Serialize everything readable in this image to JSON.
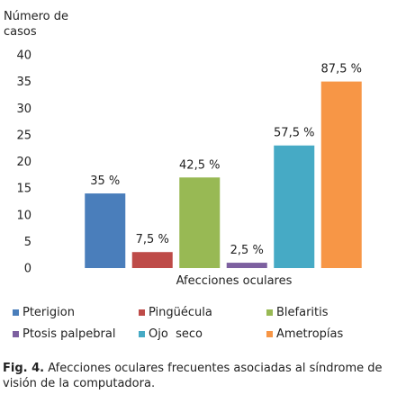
{
  "chart_data": {
    "type": "bar",
    "ylabel": "Número de\ncasos",
    "xlabel": "Afecciones  oculares",
    "ylim": [
      0,
      40
    ],
    "yticks": [
      0,
      5,
      10,
      15,
      20,
      25,
      30,
      35,
      40
    ],
    "grid": false,
    "legend_position": "bottom",
    "categories": [
      "Pterigion",
      "Pingüécula",
      "Blefaritis",
      "Ptosis palpebral",
      "Ojo  seco",
      "Ametropías"
    ],
    "values": [
      14,
      3,
      17,
      1,
      23,
      35
    ],
    "data_labels": [
      "35 %",
      "7,5 %",
      "42,5 %",
      "2,5 %",
      "57,5 %",
      "87,5 %"
    ],
    "colors": [
      "#4a7ebb",
      "#be4b48",
      "#98b954",
      "#7d60a0",
      "#46aac5",
      "#f79646"
    ]
  },
  "caption": {
    "label": "Fig. 4.",
    "text": " Afecciones oculares frecuentes asociadas al síndrome de visión de la computadora."
  }
}
